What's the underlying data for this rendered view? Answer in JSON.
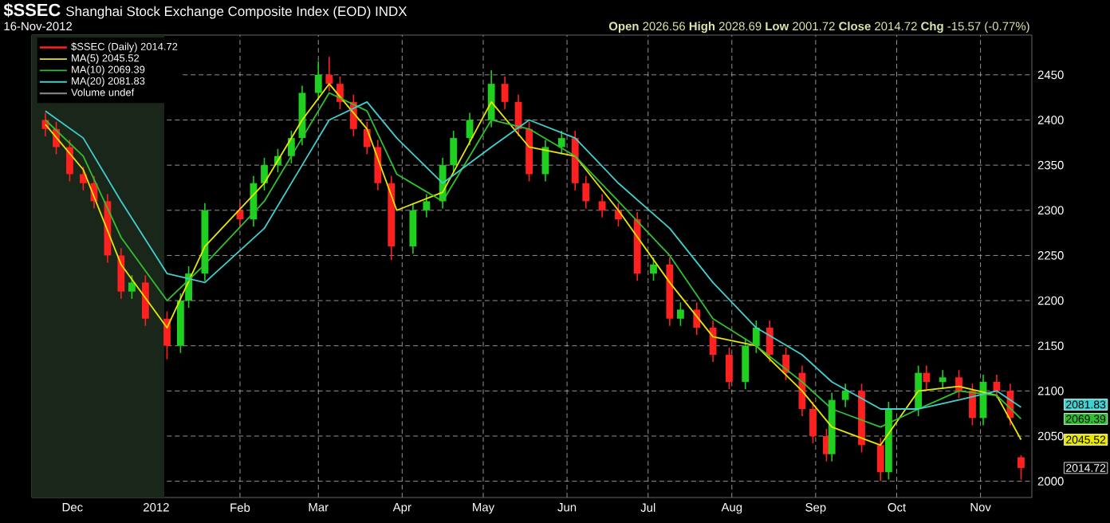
{
  "chart_data": {
    "type": "candlestick",
    "title": "$SSEC",
    "subtitle": "Shanghai Stock Exchange Composite Index (EOD) INDX",
    "annotations": [
      "16-Nov-2012",
      "**Open** 2026.56 **High** 2028.69 **Low** 2001.72 **Close** 2014.72 **Chg** -15.57 (-0.77%)",
      "Volume undef",
      "2081.83",
      "2069.39",
      "2045.52",
      "2014.72"
    ],
    "xlim": [
      "2011-11-16",
      "2012-11-20"
    ],
    "ylim": [
      1982,
      2494
    ],
    "xticks": [
      {
        "value": "2011-12-01",
        "label": "Dec"
      },
      {
        "value": "2012-01-01",
        "label": "2012"
      },
      {
        "value": "2012-02-01",
        "label": "Feb"
      },
      {
        "value": "2012-03-01",
        "label": "Mar"
      },
      {
        "value": "2012-04-01",
        "label": "Apr"
      },
      {
        "value": "2012-05-01",
        "label": "May"
      },
      {
        "value": "2012-06-01",
        "label": "Jun"
      },
      {
        "value": "2012-07-01",
        "label": "Jul"
      },
      {
        "value": "2012-08-01",
        "label": "Aug"
      },
      {
        "value": "2012-09-01",
        "label": "Sep"
      },
      {
        "value": "2012-10-01",
        "label": "Oct"
      },
      {
        "value": "2012-11-01",
        "label": "Nov"
      }
    ],
    "yticks": [
      2000,
      2050,
      2100,
      2150,
      2200,
      2250,
      2300,
      2350,
      2400,
      2450
    ],
    "grid": true,
    "legend": "top left",
    "bands": [
      {
        "axis": "x",
        "from": "2011-11-16",
        "to": "2012-01-04",
        "color": "#1a261a"
      }
    ],
    "series": [
      {
        "name": "$SSEC (Daily) 2014.72",
        "x": [
          "2011-11-21",
          "2011-11-25",
          "2011-11-30",
          "2011-12-05",
          "2011-12-09",
          "2011-12-14",
          "2011-12-19",
          "2011-12-23",
          "2011-12-28",
          "2012-01-05",
          "2012-01-10",
          "2012-01-13",
          "2012-01-19",
          "2012-02-01",
          "2012-02-06",
          "2012-02-10",
          "2012-02-15",
          "2012-02-20",
          "2012-02-24",
          "2012-03-01",
          "2012-03-05",
          "2012-03-09",
          "2012-03-14",
          "2012-03-19",
          "2012-03-23",
          "2012-03-28",
          "2012-04-05",
          "2012-04-10",
          "2012-04-16",
          "2012-04-20",
          "2012-04-26",
          "2012-05-04",
          "2012-05-09",
          "2012-05-14",
          "2012-05-18",
          "2012-05-24",
          "2012-05-30",
          "2012-06-04",
          "2012-06-08",
          "2012-06-14",
          "2012-06-20",
          "2012-06-27",
          "2012-07-03",
          "2012-07-09",
          "2012-07-13",
          "2012-07-19",
          "2012-07-25",
          "2012-07-31",
          "2012-08-06",
          "2012-08-10",
          "2012-08-15",
          "2012-08-21",
          "2012-08-27",
          "2012-08-31",
          "2012-09-05",
          "2012-09-07",
          "2012-09-12",
          "2012-09-18",
          "2012-09-25",
          "2012-09-28",
          "2012-10-09",
          "2012-10-12",
          "2012-10-18",
          "2012-10-24",
          "2012-10-29",
          "2012-11-02",
          "2012-11-07",
          "2012-11-12",
          "2012-11-16"
        ],
        "ohlc": [
          [
            2400,
            2408,
            2382,
            2390
          ],
          [
            2390,
            2398,
            2362,
            2370
          ],
          [
            2370,
            2378,
            2332,
            2340
          ],
          [
            2340,
            2348,
            2322,
            2330
          ],
          [
            2330,
            2338,
            2302,
            2310
          ],
          [
            2310,
            2318,
            2242,
            2250
          ],
          [
            2250,
            2258,
            2202,
            2210
          ],
          [
            2210,
            2228,
            2202,
            2220
          ],
          [
            2220,
            2228,
            2172,
            2180
          ],
          [
            2180,
            2188,
            2135,
            2150
          ],
          [
            2150,
            2208,
            2142,
            2200
          ],
          [
            2200,
            2238,
            2192,
            2230
          ],
          [
            2230,
            2308,
            2222,
            2300
          ],
          [
            2300,
            2308,
            2282,
            2290
          ],
          [
            2290,
            2338,
            2282,
            2330
          ],
          [
            2330,
            2358,
            2322,
            2350
          ],
          [
            2350,
            2368,
            2342,
            2360
          ],
          [
            2360,
            2388,
            2352,
            2380
          ],
          [
            2380,
            2438,
            2372,
            2430
          ],
          [
            2430,
            2465,
            2422,
            2450
          ],
          [
            2450,
            2470,
            2432,
            2440
          ],
          [
            2440,
            2448,
            2412,
            2420
          ],
          [
            2420,
            2428,
            2382,
            2390
          ],
          [
            2390,
            2398,
            2362,
            2370
          ],
          [
            2370,
            2378,
            2322,
            2330
          ],
          [
            2330,
            2338,
            2245,
            2260
          ],
          [
            2260,
            2308,
            2252,
            2300
          ],
          [
            2300,
            2318,
            2292,
            2310
          ],
          [
            2310,
            2358,
            2302,
            2350
          ],
          [
            2350,
            2388,
            2342,
            2380
          ],
          [
            2380,
            2408,
            2372,
            2400
          ],
          [
            2400,
            2455,
            2392,
            2440
          ],
          [
            2440,
            2448,
            2412,
            2420
          ],
          [
            2420,
            2428,
            2382,
            2390
          ],
          [
            2390,
            2398,
            2332,
            2340
          ],
          [
            2340,
            2378,
            2332,
            2370
          ],
          [
            2370,
            2388,
            2362,
            2380
          ],
          [
            2380,
            2388,
            2322,
            2330
          ],
          [
            2330,
            2338,
            2302,
            2310
          ],
          [
            2310,
            2318,
            2292,
            2300
          ],
          [
            2300,
            2308,
            2282,
            2290
          ],
          [
            2290,
            2298,
            2222,
            2230
          ],
          [
            2230,
            2248,
            2222,
            2240
          ],
          [
            2240,
            2248,
            2172,
            2180
          ],
          [
            2180,
            2198,
            2172,
            2190
          ],
          [
            2190,
            2198,
            2162,
            2170
          ],
          [
            2170,
            2178,
            2132,
            2140
          ],
          [
            2140,
            2148,
            2102,
            2110
          ],
          [
            2110,
            2158,
            2102,
            2150
          ],
          [
            2150,
            2178,
            2142,
            2170
          ],
          [
            2170,
            2178,
            2132,
            2140
          ],
          [
            2140,
            2148,
            2112,
            2120
          ],
          [
            2120,
            2128,
            2072,
            2080
          ],
          [
            2080,
            2088,
            2042,
            2050
          ],
          [
            2050,
            2058,
            2022,
            2030
          ],
          [
            2030,
            2098,
            2022,
            2090
          ],
          [
            2090,
            2108,
            2082,
            2100
          ],
          [
            2100,
            2108,
            2032,
            2040
          ],
          [
            2040,
            2048,
            2000,
            2010
          ],
          [
            2010,
            2088,
            2002,
            2080
          ],
          [
            2080,
            2128,
            2072,
            2120
          ],
          [
            2120,
            2128,
            2102,
            2110
          ],
          [
            2110,
            2123,
            2102,
            2115
          ],
          [
            2115,
            2123,
            2092,
            2100
          ],
          [
            2100,
            2108,
            2062,
            2070
          ],
          [
            2070,
            2118,
            2062,
            2110
          ],
          [
            2110,
            2118,
            2092,
            2100
          ],
          [
            2100,
            2108,
            2062,
            2070
          ],
          [
            2026.56,
            2028.69,
            2001.72,
            2014.72
          ]
        ],
        "colors": [
          "#ff2020",
          "#ff2020",
          "#ff2020",
          "#ff2020",
          "#ff2020",
          "#ff2020",
          "#ff2020",
          "#20d020",
          "#ff2020",
          "#ff2020",
          "#20d020",
          "#20d020",
          "#20d020",
          "#ff2020",
          "#20d020",
          "#20d020",
          "#20d020",
          "#20d020",
          "#20d020",
          "#20d020",
          "#ff2020",
          "#ff2020",
          "#ff2020",
          "#ff2020",
          "#ff2020",
          "#ff2020",
          "#20d020",
          "#20d020",
          "#20d020",
          "#20d020",
          "#20d020",
          "#20d020",
          "#ff2020",
          "#ff2020",
          "#ff2020",
          "#20d020",
          "#20d020",
          "#ff2020",
          "#ff2020",
          "#ff2020",
          "#ff2020",
          "#ff2020",
          "#20d020",
          "#ff2020",
          "#20d020",
          "#ff2020",
          "#ff2020",
          "#ff2020",
          "#20d020",
          "#20d020",
          "#ff2020",
          "#ff2020",
          "#ff2020",
          "#ff2020",
          "#ff2020",
          "#20d020",
          "#20d020",
          "#ff2020",
          "#ff2020",
          "#20d020",
          "#20d020",
          "#ff2020",
          "#20d020",
          "#ff2020",
          "#ff2020",
          "#20d020",
          "#ff2020",
          "#ff2020",
          "#ff2020"
        ]
      },
      {
        "name": "MA(5) 2045.52",
        "type": "line",
        "color": "#e8e800",
        "x": [
          "2011-11-21",
          "2011-12-05",
          "2011-12-19",
          "2012-01-05",
          "2012-01-19",
          "2012-02-10",
          "2012-02-24",
          "2012-03-05",
          "2012-03-19",
          "2012-03-30",
          "2012-04-16",
          "2012-05-04",
          "2012-05-18",
          "2012-06-04",
          "2012-06-20",
          "2012-07-09",
          "2012-07-25",
          "2012-08-10",
          "2012-08-27",
          "2012-09-07",
          "2012-09-25",
          "2012-10-09",
          "2012-10-24",
          "2012-11-07",
          "2012-11-16"
        ],
        "values": [
          2395,
          2345,
          2240,
          2170,
          2260,
          2330,
          2400,
          2440,
          2390,
          2300,
          2320,
          2420,
          2370,
          2360,
          2300,
          2220,
          2160,
          2150,
          2100,
          2060,
          2040,
          2100,
          2105,
          2095,
          2046
        ]
      },
      {
        "name": "MA(10) 2069.39",
        "type": "line",
        "color": "#30c030",
        "x": [
          "2011-11-21",
          "2011-12-05",
          "2011-12-19",
          "2012-01-05",
          "2012-01-19",
          "2012-02-10",
          "2012-02-24",
          "2012-03-05",
          "2012-03-19",
          "2012-03-30",
          "2012-04-16",
          "2012-05-04",
          "2012-05-18",
          "2012-06-04",
          "2012-06-20",
          "2012-07-09",
          "2012-07-25",
          "2012-08-10",
          "2012-08-27",
          "2012-09-07",
          "2012-09-25",
          "2012-10-09",
          "2012-10-24",
          "2012-11-07",
          "2012-11-16"
        ],
        "values": [
          2400,
          2360,
          2270,
          2200,
          2240,
          2310,
          2380,
          2430,
          2410,
          2340,
          2310,
          2400,
          2390,
          2360,
          2310,
          2250,
          2180,
          2150,
          2110,
          2080,
          2060,
          2080,
          2100,
          2095,
          2069
        ]
      },
      {
        "name": "MA(20) 2081.83",
        "type": "line",
        "color": "#40d0d0",
        "x": [
          "2011-11-21",
          "2011-12-05",
          "2011-12-19",
          "2012-01-05",
          "2012-01-19",
          "2012-02-10",
          "2012-02-24",
          "2012-03-05",
          "2012-03-19",
          "2012-03-30",
          "2012-04-16",
          "2012-05-04",
          "2012-05-18",
          "2012-06-04",
          "2012-06-20",
          "2012-07-09",
          "2012-07-25",
          "2012-08-10",
          "2012-08-27",
          "2012-09-07",
          "2012-09-25",
          "2012-10-09",
          "2012-10-24",
          "2012-11-07",
          "2012-11-16"
        ],
        "values": [
          2410,
          2380,
          2310,
          2230,
          2220,
          2280,
          2350,
          2400,
          2420,
          2380,
          2330,
          2370,
          2400,
          2380,
          2330,
          2280,
          2220,
          2170,
          2140,
          2110,
          2080,
          2080,
          2090,
          2100,
          2082
        ]
      }
    ]
  }
}
